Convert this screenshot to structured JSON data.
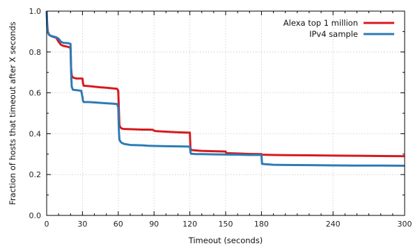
{
  "chart_data": {
    "type": "line",
    "xlabel": "Timeout (seconds)",
    "ylabel": "Fraction of hosts that timeout after X seconds",
    "xlim": [
      0,
      300
    ],
    "ylim": [
      0,
      1.0
    ],
    "x_major_ticks": [
      0,
      30,
      60,
      90,
      120,
      150,
      180,
      240,
      300
    ],
    "x_minor_ticks": [
      10,
      20,
      40,
      50,
      70,
      80,
      100,
      110,
      130,
      140,
      160,
      170,
      190,
      200,
      210,
      220,
      230,
      250,
      260,
      270,
      280,
      290
    ],
    "x_tick_labels": [
      "0",
      "30",
      "60",
      "90",
      "120",
      "150",
      "180",
      "240",
      "300"
    ],
    "y_ticks": [
      0.0,
      0.2,
      0.4,
      0.6,
      0.8,
      1.0
    ],
    "y_tick_labels": [
      "0.0",
      "0.2",
      "0.4",
      "0.6",
      "0.8",
      "1.0"
    ],
    "grid": true,
    "legend_position": "top-right",
    "series": [
      {
        "name": "Alexa top 1 million",
        "color": "#d7191c",
        "x": [
          0,
          0.5,
          1,
          2,
          3,
          5,
          8,
          10,
          12,
          14,
          18,
          20,
          20.5,
          21,
          22,
          25,
          30,
          30.5,
          31,
          35,
          40,
          45,
          50,
          55,
          59,
          60,
          60.5,
          61,
          62,
          63,
          65,
          70,
          80,
          85,
          89,
          90,
          91,
          100,
          110,
          119,
          120,
          120.5,
          121,
          125,
          130,
          140,
          149,
          150,
          150.5,
          160,
          170,
          179,
          180,
          180.5,
          190,
          200,
          220,
          240,
          260,
          280,
          300
        ],
        "y": [
          1.0,
          0.93,
          0.9,
          0.885,
          0.88,
          0.875,
          0.87,
          0.85,
          0.835,
          0.83,
          0.825,
          0.82,
          0.72,
          0.685,
          0.675,
          0.67,
          0.67,
          0.645,
          0.635,
          0.633,
          0.63,
          0.627,
          0.625,
          0.622,
          0.62,
          0.61,
          0.52,
          0.44,
          0.43,
          0.425,
          0.423,
          0.422,
          0.42,
          0.42,
          0.419,
          0.415,
          0.413,
          0.41,
          0.407,
          0.405,
          0.405,
          0.33,
          0.32,
          0.318,
          0.316,
          0.314,
          0.313,
          0.313,
          0.305,
          0.303,
          0.301,
          0.3,
          0.3,
          0.297,
          0.296,
          0.295,
          0.294,
          0.293,
          0.292,
          0.291,
          0.29
        ]
      },
      {
        "name": "IPv4 sample",
        "color": "#2c7bb6",
        "x": [
          0,
          0.5,
          1,
          2,
          3,
          5,
          8,
          10,
          12,
          14,
          18,
          20,
          20.5,
          21,
          22,
          25,
          29,
          30,
          30.5,
          31,
          35,
          40,
          45,
          50,
          55,
          59,
          60,
          60.5,
          61,
          62,
          63,
          65,
          70,
          80,
          85,
          90,
          100,
          110,
          119,
          120,
          120.5,
          121,
          125,
          130,
          140,
          150,
          160,
          170,
          179,
          180,
          180.5,
          190,
          200,
          220,
          240,
          260,
          280,
          300
        ],
        "y": [
          1.0,
          0.92,
          0.895,
          0.885,
          0.88,
          0.877,
          0.872,
          0.865,
          0.85,
          0.845,
          0.843,
          0.84,
          0.7,
          0.63,
          0.615,
          0.613,
          0.61,
          0.58,
          0.56,
          0.555,
          0.555,
          0.553,
          0.551,
          0.549,
          0.547,
          0.545,
          0.53,
          0.42,
          0.37,
          0.36,
          0.355,
          0.35,
          0.345,
          0.343,
          0.341,
          0.34,
          0.339,
          0.338,
          0.337,
          0.337,
          0.31,
          0.302,
          0.3,
          0.3,
          0.299,
          0.298,
          0.297,
          0.296,
          0.296,
          0.295,
          0.252,
          0.248,
          0.247,
          0.246,
          0.245,
          0.244,
          0.244,
          0.243
        ]
      }
    ]
  }
}
